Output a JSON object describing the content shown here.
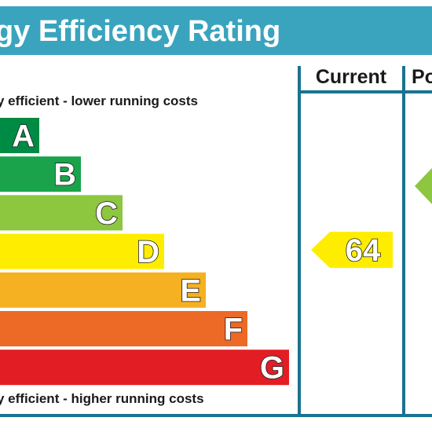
{
  "title": "gy Efficiency Rating",
  "columns": {
    "current": "Current",
    "potential": "Po"
  },
  "notes": {
    "top": "y efficient - lower running costs",
    "bottom": "y efficient - higher running costs"
  },
  "colors": {
    "header": "#3aa4be",
    "frame": "#1a7391",
    "text": "#1a1a1a"
  },
  "chart_data": {
    "type": "bar",
    "categories": [
      "A",
      "B",
      "C",
      "D",
      "E",
      "F",
      "G"
    ],
    "colors": [
      "#008b44",
      "#1aa34a",
      "#8dc63f",
      "#ffed00",
      "#f5b122",
      "#ec6a25",
      "#e31d24"
    ],
    "current": {
      "value": 64,
      "band": "D",
      "color": "#ffed00"
    },
    "potential": {
      "band": "C",
      "color": "#8dc63f"
    }
  }
}
